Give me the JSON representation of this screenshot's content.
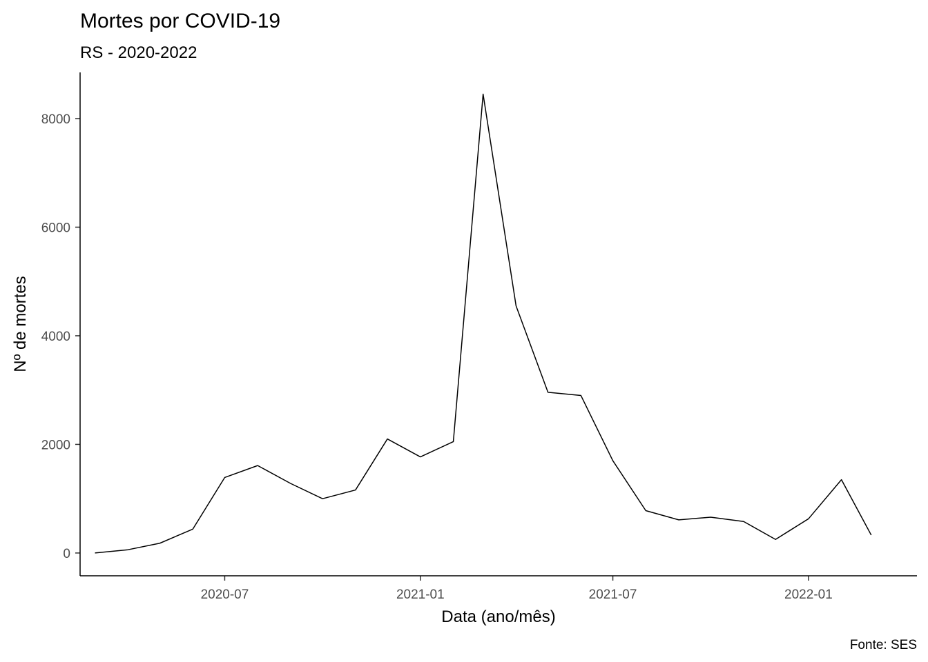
{
  "chart_data": {
    "type": "line",
    "title": "Mortes por COVID-19",
    "subtitle": "RS - 2020-2022",
    "xlabel": "Data (ano/mês)",
    "ylabel": "Nº de mortes",
    "caption": "Fonte: SES",
    "x_ticks": [
      {
        "date": "2020-07-01",
        "label": "2020-07"
      },
      {
        "date": "2021-01-01",
        "label": "2021-01"
      },
      {
        "date": "2021-07-01",
        "label": "2021-07"
      },
      {
        "date": "2022-01-01",
        "label": "2022-01"
      }
    ],
    "xlim": [
      "2020-02-16",
      "2022-04-13"
    ],
    "y_ticks": [
      0,
      2000,
      4000,
      6000,
      8000
    ],
    "ylim": [
      -420,
      8850
    ],
    "grid": false,
    "line_color": "#000000",
    "series": [
      {
        "x": [
          "2020-03-01",
          "2020-04-01",
          "2020-05-01",
          "2020-06-01",
          "2020-07-01",
          "2020-08-01",
          "2020-09-01",
          "2020-10-01",
          "2020-11-01",
          "2020-12-01",
          "2021-01-01",
          "2021-02-01",
          "2021-03-01",
          "2021-04-01",
          "2021-05-01",
          "2021-06-01",
          "2021-07-01",
          "2021-08-01",
          "2021-09-01",
          "2021-10-01",
          "2021-11-01",
          "2021-12-01",
          "2022-01-01",
          "2022-02-01",
          "2022-03-01"
        ],
        "values": [
          0,
          60,
          180,
          440,
          1390,
          1610,
          1280,
          1000,
          1160,
          2100,
          1770,
          2050,
          8450,
          4550,
          2960,
          2900,
          1700,
          780,
          610,
          660,
          580,
          250,
          630,
          1350,
          330
        ]
      }
    ]
  }
}
